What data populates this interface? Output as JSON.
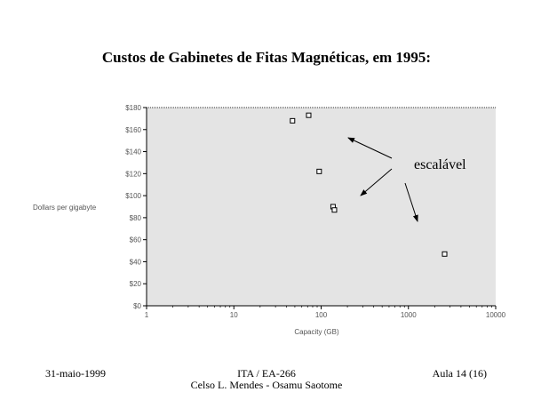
{
  "slide": {
    "title": "Custos de Gabinetes de Fitas Magnéticas, em 1995:"
  },
  "chart_data": {
    "type": "scatter",
    "title": "Custos de Gabinetes de Fitas Magnéticas, em 1995:",
    "xlabel": "Capacity (GB)",
    "ylabel": "Dollars per gigabyte",
    "x_scale": "log",
    "xlim": [
      1,
      10000
    ],
    "ylim": [
      0,
      180
    ],
    "x_ticks": [
      1,
      10,
      100,
      1000,
      10000
    ],
    "x_tick_labels": [
      "1",
      "10",
      "100",
      "1000",
      "10000"
    ],
    "y_ticks": [
      0,
      20,
      40,
      60,
      80,
      100,
      120,
      140,
      160,
      180
    ],
    "y_tick_labels": [
      "$0",
      "$20",
      "$40",
      "$60",
      "$80",
      "$100",
      "$120",
      "$140",
      "$160",
      "$180"
    ],
    "grid": false,
    "plot_background": "#e4e4e4",
    "series": [
      {
        "points": [
          {
            "x": 47,
            "y": 168
          },
          {
            "x": 72,
            "y": 173
          },
          {
            "x": 95,
            "y": 122
          },
          {
            "x": 137,
            "y": 90
          },
          {
            "x": 142,
            "y": 87
          },
          {
            "x": 2600,
            "y": 47
          }
        ]
      }
    ],
    "annotation": {
      "text": "escalável"
    }
  },
  "footer": {
    "left": "31-maio-1999",
    "center_line1": "ITA / EA-266",
    "center_line2": "Celso L. Mendes - Osamu Saotome",
    "right": "Aula 14 (16)"
  }
}
